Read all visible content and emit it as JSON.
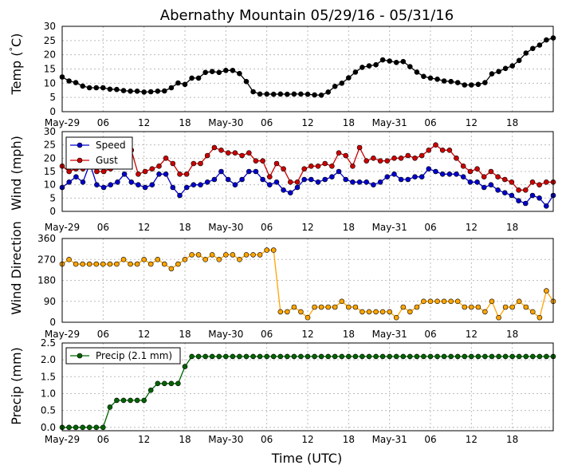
{
  "chart_data": {
    "type": "line",
    "title": "Abernathy Mountain 05/29/16 - 05/31/16",
    "xlabel": "Time (UTC)",
    "x_tick_labels": [
      "May-29",
      "06",
      "12",
      "18",
      "May-30",
      "06",
      "12",
      "18",
      "May-31",
      "06",
      "12",
      "18"
    ],
    "x_tick_hours": [
      0,
      6,
      12,
      18,
      24,
      30,
      36,
      42,
      48,
      54,
      60,
      66
    ],
    "x_range_hours": [
      0,
      72
    ],
    "grid": true,
    "colors": {
      "temp": "#000000",
      "speed": "#0000cc",
      "gust": "#cc0000",
      "direction": "#ffa500",
      "precip": "#006400"
    },
    "panels": [
      {
        "ylabel": "Temp ( C)",
        "ylabel_prefix": "Temp (",
        "ylabel_degree": "°",
        "ylabel_suffix": "C)",
        "ylim": [
          0,
          30
        ],
        "yticks": [
          0,
          5,
          10,
          15,
          20,
          25,
          30
        ],
        "series": [
          {
            "key": "temp",
            "values": [
              12.2,
              10.8,
              10.2,
              9.0,
              8.4,
              8.4,
              8.4,
              7.9,
              7.8,
              7.4,
              7.2,
              7.2,
              6.9,
              7.0,
              7.2,
              7.3,
              8.4,
              10.1,
              9.6,
              11.8,
              11.8,
              13.8,
              14.1,
              13.8,
              14.5,
              14.5,
              13.4,
              10.6,
              7.0,
              6.2,
              6.2,
              6.1,
              6.2,
              6.1,
              6.2,
              6.2,
              6.1,
              5.9,
              5.8,
              6.9,
              8.9,
              10.0,
              11.9,
              13.9,
              15.6,
              16.1,
              16.5,
              18.2,
              17.8,
              17.3,
              17.6,
              15.8,
              13.9,
              12.4,
              11.8,
              11.4,
              10.8,
              10.6,
              10.2,
              9.4,
              9.4,
              9.6,
              10.2,
              13.3,
              14.1,
              15.2,
              16.1,
              18.0,
              20.6,
              22.2,
              23.4,
              25.2,
              25.9
            ]
          }
        ]
      },
      {
        "ylabel": "Wind (mph)",
        "ylim": [
          0,
          30
        ],
        "yticks": [
          0,
          5,
          10,
          15,
          20,
          25,
          30
        ],
        "legend": [
          "Speed",
          "Gust"
        ],
        "legend_position": "upper-left",
        "series": [
          {
            "key": "speed",
            "name": "Speed",
            "values": [
              9,
              11,
              13,
              11,
              18,
              10,
              9,
              10,
              11,
              14,
              11,
              10,
              9,
              10,
              14,
              14,
              9,
              6,
              9,
              10,
              10,
              11,
              12,
              15,
              12,
              10,
              12,
              15,
              15,
              12,
              10,
              11,
              8,
              7,
              9,
              12,
              12,
              11,
              12,
              13,
              15,
              12,
              11,
              11,
              11,
              10,
              11,
              13,
              14,
              12,
              12,
              13,
              13,
              16,
              15,
              14,
              14,
              14,
              13,
              11,
              11,
              9,
              10,
              8,
              7,
              6,
              4,
              3,
              6,
              5,
              2,
              6
            ]
          },
          {
            "key": "gust",
            "name": "Gust",
            "values": [
              17,
              15,
              16,
              16,
              18,
              15,
              15,
              16,
              17,
              19,
              23,
              14,
              15,
              16,
              17,
              20,
              18,
              14,
              14,
              18,
              18,
              21,
              24,
              23,
              22,
              22,
              21,
              22,
              19,
              19,
              13,
              18,
              16,
              11,
              11,
              16,
              17,
              17,
              18,
              17,
              22,
              21,
              17,
              24,
              19,
              20,
              19,
              19,
              20,
              20,
              21,
              20,
              21,
              23,
              25,
              23,
              23,
              20,
              17,
              15,
              16,
              13,
              15,
              13,
              12,
              11,
              8,
              8,
              11,
              10,
              11,
              11
            ]
          }
        ]
      },
      {
        "ylabel": "Wind Direction",
        "ylim": [
          0,
          360
        ],
        "yticks": [
          0,
          90,
          180,
          270,
          360
        ],
        "series": [
          {
            "key": "direction",
            "values": [
              250,
              270,
              250,
              250,
              250,
              250,
              250,
              250,
              250,
              270,
              250,
              250,
              270,
              250,
              270,
              250,
              230,
              250,
              270,
              290,
              290,
              270,
              290,
              270,
              290,
              290,
              270,
              290,
              290,
              290,
              310,
              310,
              45,
              45,
              65,
              45,
              20,
              65,
              65,
              65,
              65,
              90,
              65,
              65,
              45,
              45,
              45,
              45,
              45,
              20,
              65,
              45,
              65,
              90,
              90,
              90,
              90,
              90,
              90,
              65,
              65,
              65,
              45,
              90,
              20,
              65,
              65,
              90,
              65,
              45,
              20,
              135,
              90
            ]
          }
        ]
      },
      {
        "ylabel": "Precip (mm)",
        "ylim": [
          -0.1,
          2.5
        ],
        "yticks": [
          0.0,
          0.5,
          1.0,
          1.5,
          2.0,
          2.5
        ],
        "ytick_labels": [
          "0.0",
          "0.5",
          "1.0",
          "1.5",
          "2.0",
          "2.5"
        ],
        "legend": [
          "Precip (2.1 mm)"
        ],
        "legend_position": "upper-left",
        "series": [
          {
            "key": "precip",
            "name": "Precip (2.1 mm)",
            "values": [
              0,
              0,
              0,
              0,
              0,
              0,
              0,
              0.6,
              0.8,
              0.8,
              0.8,
              0.8,
              0.8,
              1.1,
              1.3,
              1.3,
              1.3,
              1.3,
              1.8,
              2.1,
              2.1,
              2.1,
              2.1,
              2.1,
              2.1,
              2.1,
              2.1,
              2.1,
              2.1,
              2.1,
              2.1,
              2.1,
              2.1,
              2.1,
              2.1,
              2.1,
              2.1,
              2.1,
              2.1,
              2.1,
              2.1,
              2.1,
              2.1,
              2.1,
              2.1,
              2.1,
              2.1,
              2.1,
              2.1,
              2.1,
              2.1,
              2.1,
              2.1,
              2.1,
              2.1,
              2.1,
              2.1,
              2.1,
              2.1,
              2.1,
              2.1,
              2.1,
              2.1,
              2.1,
              2.1,
              2.1,
              2.1,
              2.1,
              2.1,
              2.1,
              2.1,
              2.1,
              2.1
            ]
          }
        ]
      }
    ]
  }
}
